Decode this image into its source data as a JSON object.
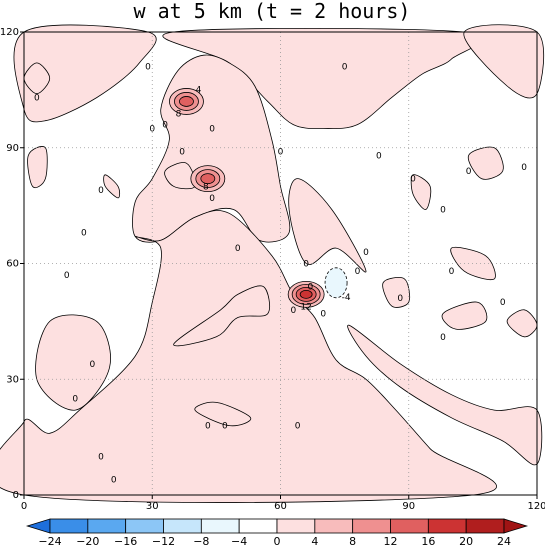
{
  "chart_data": {
    "type": "contour",
    "title": "w at 5 km (t = 2 hours)",
    "xlabel": "",
    "ylabel": "",
    "xlim": [
      0,
      120
    ],
    "ylim": [
      0,
      120
    ],
    "x_ticks": [
      0,
      30,
      60,
      90,
      120
    ],
    "y_ticks": [
      0,
      30,
      60,
      90,
      120
    ],
    "grid": true,
    "contour_interval": 4,
    "colorbar": {
      "orientation": "horizontal",
      "position": "bottom",
      "tick_labels": [
        "-24",
        "-20",
        "-16",
        "-12",
        "-8",
        "-4",
        "0",
        "4",
        "8",
        "12",
        "16",
        "20",
        "24"
      ],
      "levels": [
        -24,
        -20,
        -16,
        -12,
        -8,
        -4,
        0,
        4,
        8,
        12,
        16,
        20,
        24
      ],
      "colors": [
        "#1e6fdc",
        "#3a8ee8",
        "#5aa8f0",
        "#8cc6f6",
        "#c6e6fb",
        "#e9f7fd",
        "#ffffff",
        "#fde0e0",
        "#f8bcbc",
        "#ef9090",
        "#e06060",
        "#cc3333",
        "#b01e1e",
        "#a01414"
      ]
    },
    "features": [
      {
        "kind": "updraft-core",
        "x": 66,
        "y": 52,
        "max_w": 12,
        "labels": [
          "12"
        ]
      },
      {
        "kind": "updraft-core",
        "x": 38,
        "y": 102,
        "max_w": 8,
        "labels": [
          "4",
          "8"
        ]
      },
      {
        "kind": "updraft-core",
        "x": 43,
        "y": 82,
        "max_w": 8,
        "labels": [
          "8"
        ]
      },
      {
        "kind": "downdraft",
        "x": 73,
        "y": 55,
        "min_w": -4,
        "labels": [
          "-4"
        ]
      }
    ],
    "positive_regions": [
      [
        [
          0,
          120
        ],
        [
          0,
          100
        ],
        [
          5,
          97
        ],
        [
          17,
          103
        ],
        [
          27,
          112
        ],
        [
          29,
          120
        ]
      ],
      [
        [
          35,
          120
        ],
        [
          48,
          112
        ],
        [
          57,
          102
        ],
        [
          63,
          96
        ],
        [
          70,
          95
        ],
        [
          78,
          96
        ],
        [
          86,
          103
        ],
        [
          93,
          109
        ],
        [
          100,
          113
        ],
        [
          103,
          120
        ]
      ],
      [
        [
          103,
          120
        ],
        [
          113,
          106
        ],
        [
          120,
          104
        ],
        [
          120,
          120
        ]
      ],
      [
        [
          48,
          112
        ],
        [
          54,
          106
        ],
        [
          58,
          92
        ],
        [
          60,
          80
        ],
        [
          62,
          68
        ],
        [
          55,
          66
        ],
        [
          49,
          74
        ],
        [
          40,
          72
        ],
        [
          32,
          66
        ],
        [
          26,
          67
        ],
        [
          26,
          76
        ],
        [
          30,
          82
        ],
        [
          34,
          92
        ],
        [
          32,
          100
        ],
        [
          36,
          110
        ],
        [
          42,
          114
        ]
      ],
      [
        [
          0,
          0
        ],
        [
          0,
          19
        ],
        [
          6,
          16
        ],
        [
          13,
          22
        ],
        [
          26,
          36
        ],
        [
          30,
          50
        ],
        [
          32,
          64
        ],
        [
          26,
          67
        ],
        [
          32,
          66
        ],
        [
          40,
          72
        ],
        [
          48,
          73
        ],
        [
          58,
          62
        ],
        [
          63,
          52
        ],
        [
          68,
          46
        ],
        [
          73,
          35
        ],
        [
          80,
          30
        ],
        [
          87,
          22
        ],
        [
          95,
          12
        ],
        [
          105,
          0
        ]
      ],
      [
        [
          62,
          74
        ],
        [
          64,
          82
        ],
        [
          72,
          74
        ],
        [
          80,
          58
        ],
        [
          73,
          64
        ],
        [
          66,
          60
        ]
      ],
      [
        [
          76,
          44
        ],
        [
          88,
          34
        ],
        [
          100,
          26
        ],
        [
          110,
          22
        ],
        [
          120,
          22
        ],
        [
          120,
          8
        ],
        [
          112,
          14
        ],
        [
          100,
          20
        ],
        [
          88,
          28
        ],
        [
          80,
          36
        ]
      ],
      [
        [
          3,
          30
        ],
        [
          12,
          22
        ],
        [
          20,
          33
        ],
        [
          17,
          45
        ],
        [
          6,
          45
        ]
      ],
      [
        [
          35,
          39
        ],
        [
          45,
          41
        ],
        [
          50,
          46
        ],
        [
          57,
          47
        ],
        [
          56,
          54
        ],
        [
          50,
          52
        ],
        [
          46,
          48
        ]
      ],
      [
        [
          1,
          88
        ],
        [
          5,
          90
        ],
        [
          5,
          82
        ],
        [
          2,
          80
        ]
      ],
      [
        [
          19,
          83
        ],
        [
          22,
          80
        ],
        [
          22,
          77
        ],
        [
          19,
          80
        ]
      ],
      [
        [
          91,
          83
        ],
        [
          95,
          80
        ],
        [
          94,
          74
        ],
        [
          91,
          78
        ]
      ],
      [
        [
          104,
          88
        ],
        [
          110,
          90
        ],
        [
          112,
          84
        ],
        [
          107,
          82
        ]
      ],
      [
        [
          84,
          55
        ],
        [
          89,
          56
        ],
        [
          90,
          50
        ],
        [
          86,
          49
        ]
      ],
      [
        [
          100,
          64
        ],
        [
          108,
          62
        ],
        [
          110,
          56
        ],
        [
          103,
          58
        ]
      ],
      [
        [
          40,
          22
        ],
        [
          45,
          24
        ],
        [
          53,
          20
        ],
        [
          48,
          18
        ]
      ],
      [
        [
          0,
          108
        ],
        [
          3,
          112
        ],
        [
          6,
          108
        ],
        [
          3,
          104
        ]
      ],
      [
        [
          33,
          84
        ],
        [
          38,
          86
        ],
        [
          40,
          80
        ],
        [
          35,
          80
        ]
      ],
      [
        [
          98,
          47
        ],
        [
          106,
          50
        ],
        [
          108,
          45
        ],
        [
          101,
          43
        ]
      ],
      [
        [
          113,
          45
        ],
        [
          117,
          48
        ],
        [
          120,
          44
        ],
        [
          117,
          41
        ]
      ]
    ],
    "contour_labels": [
      {
        "text": "0",
        "x": 3,
        "y": 103
      },
      {
        "text": "0",
        "x": 30,
        "y": 95
      },
      {
        "text": "0",
        "x": 29,
        "y": 111
      },
      {
        "text": "0",
        "x": 33,
        "y": 96
      },
      {
        "text": "0",
        "x": 44,
        "y": 95
      },
      {
        "text": "0",
        "x": 37,
        "y": 89
      },
      {
        "text": "0",
        "x": 44,
        "y": 77
      },
      {
        "text": "0",
        "x": 50,
        "y": 64
      },
      {
        "text": "0",
        "x": 60,
        "y": 89
      },
      {
        "text": "0",
        "x": 75,
        "y": 111
      },
      {
        "text": "0",
        "x": 83,
        "y": 88
      },
      {
        "text": "0",
        "x": 91,
        "y": 82
      },
      {
        "text": "0",
        "x": 98,
        "y": 74
      },
      {
        "text": "0",
        "x": 104,
        "y": 84
      },
      {
        "text": "0",
        "x": 117,
        "y": 85
      },
      {
        "text": "0",
        "x": 100,
        "y": 58
      },
      {
        "text": "0",
        "x": 112,
        "y": 50
      },
      {
        "text": "0",
        "x": 98,
        "y": 41
      },
      {
        "text": "0",
        "x": 88,
        "y": 51
      },
      {
        "text": "0",
        "x": 80,
        "y": 63
      },
      {
        "text": "0",
        "x": 78,
        "y": 58
      },
      {
        "text": "0",
        "x": 66,
        "y": 60
      },
      {
        "text": "0",
        "x": 67,
        "y": 54
      },
      {
        "text": "0",
        "x": 70,
        "y": 47
      },
      {
        "text": "0",
        "x": 63,
        "y": 48
      },
      {
        "text": "0",
        "x": 18,
        "y": 79
      },
      {
        "text": "0",
        "x": 14,
        "y": 68
      },
      {
        "text": "0",
        "x": 10,
        "y": 57
      },
      {
        "text": "0",
        "x": 12,
        "y": 25
      },
      {
        "text": "0",
        "x": 16,
        "y": 34
      },
      {
        "text": "0",
        "x": 18,
        "y": 10
      },
      {
        "text": "0",
        "x": 21,
        "y": 4
      },
      {
        "text": "0",
        "x": 43,
        "y": 18
      },
      {
        "text": "0",
        "x": 47,
        "y": 18
      },
      {
        "text": "0",
        "x": 64,
        "y": 18
      }
    ]
  }
}
